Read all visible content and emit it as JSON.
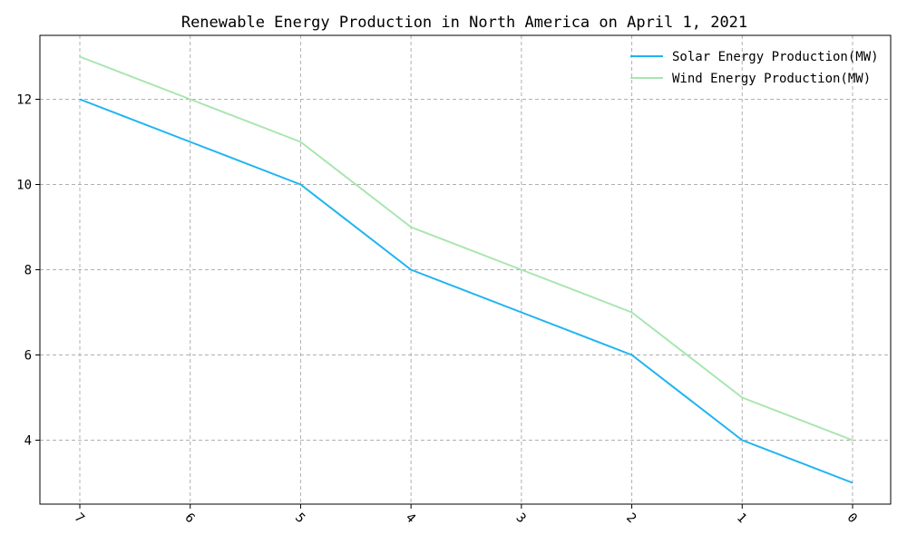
{
  "chart_data": {
    "type": "line",
    "title": "Renewable Energy Production in North America on April 1, 2021",
    "xlabel": "",
    "ylabel": "",
    "categories": [
      "7",
      "6",
      "5",
      "4",
      "3",
      "2",
      "1",
      "0"
    ],
    "ylim": [
      2.5,
      13.5
    ],
    "y_ticks": [
      4,
      6,
      8,
      10,
      12
    ],
    "grid": true,
    "legend_position": "top-right",
    "series": [
      {
        "name": "Solar Energy Production(MW)",
        "color": "#1fb4f0",
        "values": [
          12,
          11,
          10,
          8,
          7,
          6,
          4,
          3
        ]
      },
      {
        "name": "Wind Energy Production(MW)",
        "color": "#a8e6b0",
        "values": [
          13,
          12,
          11,
          9,
          8,
          7,
          5,
          4
        ]
      }
    ]
  }
}
